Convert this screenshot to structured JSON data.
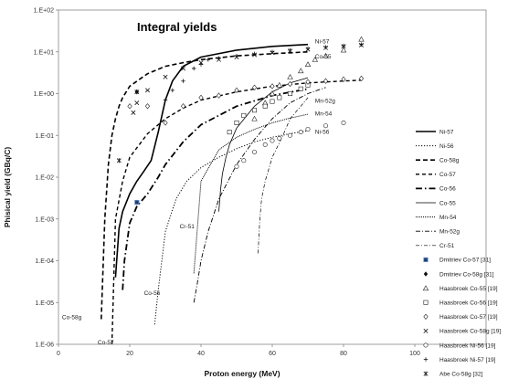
{
  "chart_data": {
    "type": "line",
    "title": "Integral yields",
    "xlabel": "Proton energy (MeV)",
    "ylabel": "Phisical yield (GBq/C)",
    "xlim": [
      0,
      120
    ],
    "ylim": [
      1e-06,
      100
    ],
    "y_scale": "log",
    "x_ticks": [
      0,
      20,
      40,
      60,
      80,
      100,
      120
    ],
    "x_tick_labels": [
      "0",
      "20",
      "40",
      "60",
      "80",
      "100",
      ""
    ],
    "y_ticks": [
      1e-06,
      1e-05,
      0.0001,
      0.001,
      0.01,
      0.1,
      1,
      10,
      100
    ],
    "y_tick_labels": [
      "1.E-06",
      "1.E-05",
      "1.E-04",
      "1.E-03",
      "1.E-02",
      "1.E-01",
      "1.E+00",
      "1.E+01",
      "1.E+02"
    ],
    "grid": false,
    "legend_position": "right",
    "series": [
      {
        "name": "Ni-57",
        "style": "solid-thick",
        "x": [
          16,
          17,
          18,
          20,
          22,
          24,
          26,
          28,
          30,
          32,
          35,
          40,
          50,
          60,
          70
        ],
        "y": [
          4e-05,
          0.0006,
          0.0015,
          0.004,
          0.008,
          0.014,
          0.025,
          0.12,
          0.7,
          2.0,
          4.5,
          7.5,
          11,
          13.5,
          15
        ]
      },
      {
        "name": "Ni-56",
        "style": "dotted",
        "x": [
          27,
          28,
          30,
          33,
          36,
          40,
          45,
          50,
          55,
          60,
          65,
          70
        ],
        "y": [
          3e-06,
          2e-05,
          0.0005,
          0.003,
          0.008,
          0.017,
          0.03,
          0.048,
          0.07,
          0.09,
          0.11,
          0.13
        ]
      },
      {
        "name": "Co-58g",
        "style": "dashed-thick",
        "x": [
          12,
          13,
          14,
          15,
          16,
          17,
          18,
          20,
          25,
          30,
          35,
          40,
          50,
          60,
          70
        ],
        "y": [
          4e-06,
          0.001,
          0.02,
          0.1,
          0.25,
          0.5,
          0.8,
          1.5,
          3,
          4.5,
          5.5,
          6.5,
          8,
          9,
          10
        ]
      },
      {
        "name": "Co-57",
        "style": "dashed",
        "x": [
          15,
          16,
          18,
          20,
          25,
          30,
          35,
          40,
          50,
          60,
          70,
          80,
          85
        ],
        "y": [
          1e-06,
          0.001,
          0.008,
          0.03,
          0.11,
          0.25,
          0.45,
          0.7,
          1.1,
          1.5,
          1.8,
          2.0,
          2.1
        ]
      },
      {
        "name": "Co-56",
        "style": "dashdot-thick",
        "x": [
          18,
          18.5,
          20,
          22,
          25,
          28,
          30,
          35,
          40,
          50,
          60,
          70
        ],
        "y": [
          2e-05,
          0.0001,
          0.0008,
          0.002,
          0.004,
          0.01,
          0.02,
          0.07,
          0.18,
          0.5,
          0.9,
          1.3
        ]
      },
      {
        "name": "Co-55",
        "style": "solid-thin",
        "x": [
          45,
          45.5,
          46,
          47,
          48,
          50,
          55,
          60,
          65,
          70
        ],
        "y": [
          0.0015,
          0.005,
          0.012,
          0.03,
          0.06,
          0.15,
          0.5,
          1.1,
          1.8,
          2.4
        ]
      },
      {
        "name": "Mn-54",
        "style": "dotted-dense",
        "x": [
          38,
          40,
          45,
          50,
          55,
          60,
          65,
          70
        ],
        "y": [
          5e-05,
          0.008,
          0.045,
          0.09,
          0.14,
          0.2,
          0.26,
          0.32
        ]
      },
      {
        "name": "Mn-52g",
        "style": "dashdot-thin",
        "x": [
          38,
          39,
          40,
          42,
          45,
          50,
          55,
          60,
          65,
          70,
          75
        ],
        "y": [
          1e-05,
          3e-05,
          0.0001,
          0.0005,
          0.003,
          0.02,
          0.08,
          0.25,
          0.6,
          1.0,
          1.4
        ]
      },
      {
        "name": "Cr-51",
        "style": "dashdot-light",
        "x": [
          56,
          56.5,
          57,
          58,
          60,
          63,
          65,
          68,
          70
        ],
        "y": [
          0.00015,
          0.001,
          0.003,
          0.008,
          0.03,
          0.1,
          0.25,
          0.5,
          0.8
        ]
      }
    ],
    "points": [
      {
        "name": "Dmitriev Co-57 [31]",
        "marker": "filled-square",
        "x": [
          22
        ],
        "y": [
          0.0025
        ]
      },
      {
        "name": "Dmitriev Co-58g [31]",
        "marker": "filled-diamond",
        "x": [
          22
        ],
        "y": [
          1.1
        ]
      },
      {
        "name": "Haasbroek Co-55 [19]",
        "marker": "open-triangle",
        "x": [
          55,
          58,
          60,
          62,
          65,
          68,
          70,
          72,
          75,
          80,
          85
        ],
        "y": [
          0.25,
          0.6,
          1.0,
          1.6,
          2.5,
          3.5,
          5,
          6.5,
          8,
          11,
          20
        ]
      },
      {
        "name": "Haasbroek Co-56 [19]",
        "marker": "open-square",
        "x": [
          48,
          50,
          52,
          55,
          58,
          60,
          62,
          65,
          68,
          70
        ],
        "y": [
          0.12,
          0.2,
          0.3,
          0.4,
          0.5,
          0.65,
          0.8,
          1.0,
          1.3,
          1.6
        ]
      },
      {
        "name": "Haasbroek Co-57 [19]",
        "marker": "open-diamond",
        "x": [
          20,
          25,
          30,
          35,
          40,
          45,
          50,
          55,
          60,
          65,
          70,
          75,
          80,
          85
        ],
        "y": [
          0.5,
          0.5,
          0.2,
          0.5,
          0.8,
          0.9,
          1.2,
          1.4,
          1.5,
          1.7,
          1.9,
          2.0,
          2.2,
          2.3
        ]
      },
      {
        "name": "Haasbroek Co-58g [19]",
        "marker": "cross",
        "x": [
          21,
          22,
          25,
          30,
          35,
          40,
          45,
          50,
          55,
          60,
          65,
          70,
          75,
          80,
          85
        ],
        "y": [
          0.35,
          0.6,
          1.2,
          2.5,
          4,
          5.5,
          6.5,
          7.5,
          8.5,
          9.5,
          10.5,
          11.5,
          12.5,
          13.5,
          14.5
        ]
      },
      {
        "name": "Haasbroek Ni-56 [19]",
        "marker": "open-circle",
        "x": [
          50,
          52,
          55,
          58,
          60,
          62,
          65,
          68,
          70,
          75,
          80
        ],
        "y": [
          0.018,
          0.025,
          0.04,
          0.06,
          0.075,
          0.085,
          0.1,
          0.12,
          0.14,
          0.17,
          0.2
        ]
      },
      {
        "name": "Haasbroek Ni-57 [19]",
        "marker": "plus",
        "x": [
          30,
          32,
          35,
          38,
          40,
          42,
          45,
          50,
          55,
          60,
          65,
          70,
          75,
          80,
          85
        ],
        "y": [
          0.7,
          1.2,
          2,
          4,
          5,
          6.5,
          7,
          8,
          9,
          10,
          11,
          12,
          13,
          14,
          15
        ]
      },
      {
        "name": "Abe Co-58g [32]",
        "marker": "star",
        "x": [
          17,
          22
        ],
        "y": [
          0.025,
          1.1
        ]
      }
    ],
    "curve_labels": [
      {
        "text": "Ni-57",
        "x": 72,
        "y": 16
      },
      {
        "text": "Co-55",
        "x": 72,
        "y": 7.0
      },
      {
        "text": "Mn-52g",
        "x": 72,
        "y": 0.6
      },
      {
        "text": "Mn-54",
        "x": 72,
        "y": 0.3
      },
      {
        "text": "Ni-56",
        "x": 72,
        "y": 0.11
      },
      {
        "text": "Cr-51",
        "x": 34,
        "y": 0.0006
      },
      {
        "text": "Co-56",
        "x": 24,
        "y": 1.5e-05
      },
      {
        "text": "Co-58g",
        "x": 1,
        "y": 4e-06
      },
      {
        "text": "Co-57",
        "x": 11,
        "y": 1e-06
      }
    ]
  }
}
